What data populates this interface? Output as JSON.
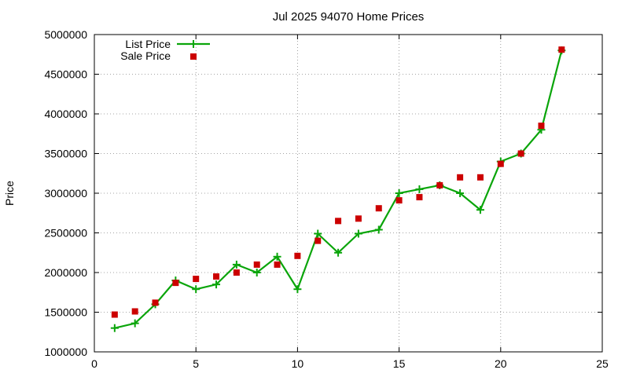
{
  "chart_data": {
    "type": "line",
    "title": "Jul 2025 94070 Home Prices",
    "xlabel": "",
    "ylabel": "Price",
    "xlim": [
      0,
      25
    ],
    "ylim": [
      1000000,
      5000000
    ],
    "xticks": [
      0,
      5,
      10,
      15,
      20,
      25
    ],
    "yticks": [
      1000000,
      1500000,
      2000000,
      2500000,
      3000000,
      3500000,
      4000000,
      4500000,
      5000000
    ],
    "grid": true,
    "legend_position": "top-left",
    "series": [
      {
        "name": "List Price",
        "style": "line-with-plus-markers",
        "color": "#0aa50a",
        "x": [
          1,
          2,
          3,
          4,
          5,
          6,
          7,
          8,
          9,
          10,
          11,
          12,
          13,
          14,
          15,
          16,
          17,
          18,
          19,
          20,
          21,
          22,
          23
        ],
        "y": [
          1300000,
          1360000,
          1600000,
          1900000,
          1790000,
          1850000,
          2100000,
          2000000,
          2200000,
          1790000,
          2490000,
          2250000,
          2490000,
          2540000,
          3000000,
          3050000,
          3100000,
          3000000,
          2790000,
          3400000,
          3500000,
          3800000,
          4800000
        ]
      },
      {
        "name": "Sale Price",
        "style": "square-markers",
        "color": "#cc0000",
        "x": [
          1,
          2,
          3,
          4,
          5,
          6,
          7,
          8,
          9,
          10,
          11,
          12,
          13,
          14,
          15,
          16,
          17,
          18,
          19,
          20,
          21,
          22,
          23
        ],
        "y": [
          1470000,
          1510000,
          1620000,
          1870000,
          1920000,
          1950000,
          2000000,
          2100000,
          2100000,
          2210000,
          2400000,
          2650000,
          2680000,
          2810000,
          2910000,
          2950000,
          3100000,
          3200000,
          3200000,
          3370000,
          3500000,
          3850000,
          4810000
        ]
      }
    ]
  }
}
